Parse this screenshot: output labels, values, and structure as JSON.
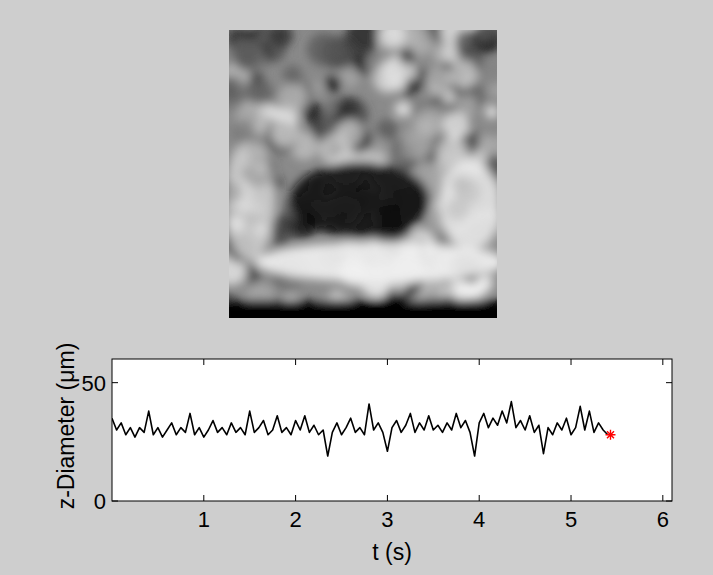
{
  "chart_data": {
    "type": "line",
    "xlabel": "t (s)",
    "ylabel": "z-Diameter (μm)",
    "xlim": [
      0,
      6.1
    ],
    "ylim": [
      0,
      60
    ],
    "xticks": [
      1,
      2,
      3,
      4,
      5,
      6
    ],
    "yticks": [
      0,
      50
    ],
    "grid": false,
    "series": [
      {
        "color": "#000000",
        "type": "line",
        "line_style": "solid",
        "x": [
          0,
          0.05,
          0.1,
          0.15,
          0.2,
          0.25,
          0.3,
          0.35,
          0.4,
          0.45,
          0.5,
          0.55,
          0.6,
          0.65,
          0.7,
          0.75,
          0.8,
          0.85,
          0.9,
          0.95,
          1,
          1.05,
          1.1,
          1.15,
          1.2,
          1.25,
          1.3,
          1.35,
          1.4,
          1.45,
          1.5,
          1.55,
          1.6,
          1.65,
          1.7,
          1.75,
          1.8,
          1.85,
          1.9,
          1.95,
          2,
          2.05,
          2.1,
          2.15,
          2.2,
          2.25,
          2.3,
          2.35,
          2.4,
          2.45,
          2.5,
          2.55,
          2.6,
          2.65,
          2.7,
          2.75,
          2.8,
          2.85,
          2.9,
          2.95,
          3,
          3.05,
          3.1,
          3.15,
          3.2,
          3.25,
          3.3,
          3.35,
          3.4,
          3.45,
          3.5,
          3.55,
          3.6,
          3.65,
          3.7,
          3.75,
          3.8,
          3.85,
          3.9,
          3.95,
          4,
          4.05,
          4.1,
          4.15,
          4.2,
          4.25,
          4.3,
          4.35,
          4.4,
          4.45,
          4.5,
          4.55,
          4.6,
          4.65,
          4.7,
          4.75,
          4.8,
          4.85,
          4.9,
          4.95,
          5,
          5.05,
          5.1,
          5.15,
          5.2,
          5.25,
          5.3,
          5.35,
          5.4
        ],
        "values": [
          35,
          30,
          33,
          28,
          31,
          27,
          31,
          29,
          38,
          28,
          31,
          27,
          30,
          33,
          28,
          31,
          29,
          37,
          28,
          31,
          27,
          30,
          34,
          29,
          31,
          28,
          33,
          29,
          31,
          28,
          38,
          29,
          31,
          34,
          28,
          30,
          36,
          29,
          31,
          28,
          34,
          30,
          36,
          29,
          32,
          28,
          30,
          19,
          29,
          33,
          28,
          31,
          35,
          29,
          31,
          28,
          41,
          30,
          33,
          29,
          21,
          31,
          34,
          29,
          32,
          37,
          29,
          33,
          30,
          36,
          30,
          32,
          29,
          33,
          30,
          37,
          31,
          34,
          29,
          19,
          33,
          37,
          31,
          35,
          32,
          38,
          33,
          42,
          31,
          34,
          30,
          36,
          29,
          32,
          20,
          31,
          28,
          33,
          30,
          35,
          28,
          31,
          40,
          30,
          38,
          29,
          33,
          30,
          28
        ]
      },
      {
        "color": "#ff0000",
        "type": "scatter",
        "marker": "asterisk",
        "x": [
          5.43
        ],
        "values": [
          28
        ]
      }
    ]
  }
}
